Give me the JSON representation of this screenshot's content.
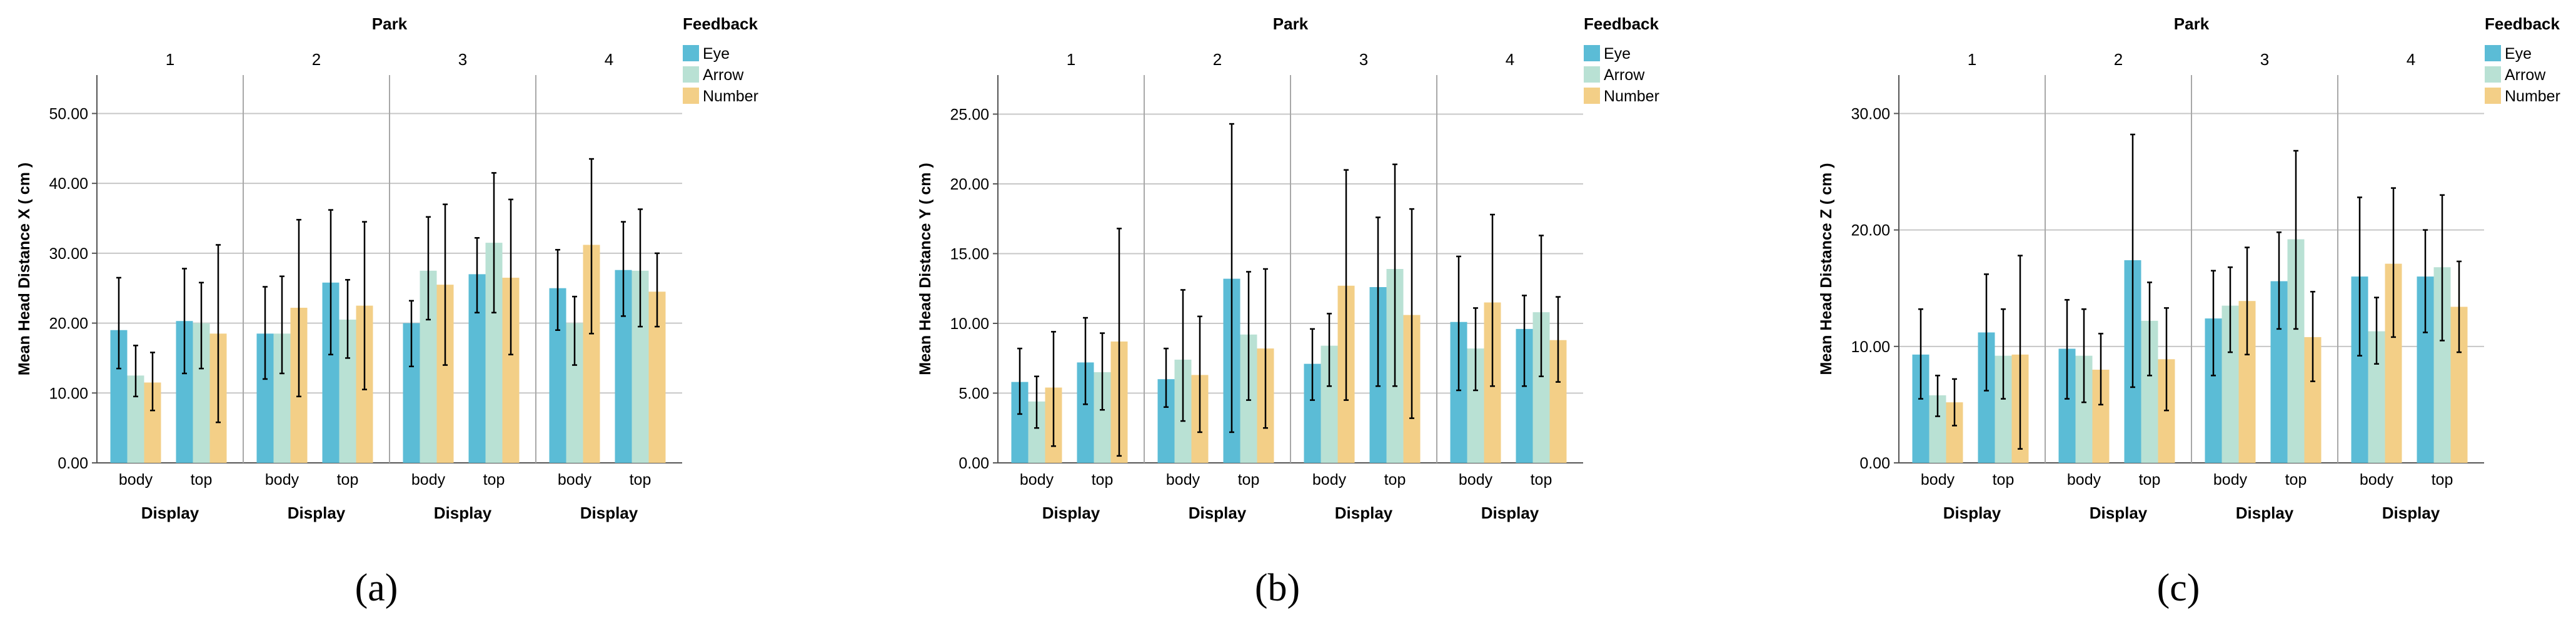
{
  "colors": {
    "eye": "#5bbcd6",
    "arrow": "#b9e1d4",
    "number": "#f3cf87",
    "grid": "#c7c7c7",
    "divider": "#a8a8a8",
    "axis": "#555555",
    "error_bar": "#000000"
  },
  "chart_data": [
    {
      "type": "bar",
      "panel_label": "(a)",
      "facet_title": "Park",
      "facets": [
        "1",
        "2",
        "3",
        "4"
      ],
      "categories": [
        "body",
        "top"
      ],
      "xlabel": "Display",
      "ylabel": "Mean Head Distance X ( cm )",
      "ylim": [
        0,
        55.5
      ],
      "yticks": [
        0,
        10,
        20,
        30,
        40,
        50
      ],
      "ytick_labels": [
        "0.00",
        "10.00",
        "20.00",
        "30.00",
        "40.00",
        "50.00"
      ],
      "grid": true,
      "legend": {
        "title": "Feedback",
        "position": "right",
        "entries": [
          "Eye",
          "Arrow",
          "Number"
        ]
      },
      "series": [
        {
          "name": "Eye",
          "values": [
            [
              19,
              20.3
            ],
            [
              18.5,
              25.8
            ],
            [
              20,
              27
            ],
            [
              25,
              27.6
            ]
          ],
          "ci_low": [
            [
              13.5,
              12.8
            ],
            [
              12,
              15.5
            ],
            [
              13.8,
              21.5
            ],
            [
              19,
              21
            ]
          ],
          "ci_high": [
            [
              26.5,
              27.8
            ],
            [
              25.2,
              36.2
            ],
            [
              23.2,
              32.2
            ],
            [
              30.5,
              34.5
            ]
          ]
        },
        {
          "name": "Arrow",
          "values": [
            [
              12.5,
              20
            ],
            [
              18.5,
              20.5
            ],
            [
              27.5,
              31.5
            ],
            [
              20,
              27.5
            ]
          ],
          "ci_low": [
            [
              9.5,
              13.5
            ],
            [
              12.8,
              15
            ],
            [
              20.5,
              21.5
            ],
            [
              14,
              19.5
            ]
          ],
          "ci_high": [
            [
              16.8,
              25.8
            ],
            [
              26.7,
              26.2
            ],
            [
              35.2,
              41.5
            ],
            [
              23.8,
              36.3
            ]
          ]
        },
        {
          "name": "Number",
          "values": [
            [
              11.5,
              18.5
            ],
            [
              22.2,
              22.5
            ],
            [
              25.5,
              26.5
            ],
            [
              31.2,
              24.5
            ]
          ],
          "ci_low": [
            [
              7.5,
              5.8
            ],
            [
              9.5,
              10.5
            ],
            [
              14,
              15.5
            ],
            [
              18.5,
              19.5
            ]
          ],
          "ci_high": [
            [
              15.8,
              31.2
            ],
            [
              34.8,
              34.5
            ],
            [
              37,
              37.7
            ],
            [
              43.5,
              30
            ]
          ]
        }
      ]
    },
    {
      "type": "bar",
      "panel_label": "(b)",
      "facet_title": "Park",
      "facets": [
        "1",
        "2",
        "3",
        "4"
      ],
      "categories": [
        "body",
        "top"
      ],
      "xlabel": "Display",
      "ylabel": "Mean Head Distance Y ( cm )",
      "ylim": [
        0,
        27.8
      ],
      "yticks": [
        0,
        5,
        10,
        15,
        20,
        25
      ],
      "ytick_labels": [
        "0.00",
        "5.00",
        "10.00",
        "15.00",
        "20.00",
        "25.00"
      ],
      "grid": true,
      "legend": {
        "title": "Feedback",
        "position": "right",
        "entries": [
          "Eye",
          "Arrow",
          "Number"
        ]
      },
      "series": [
        {
          "name": "Eye",
          "values": [
            [
              5.8,
              7.2
            ],
            [
              6,
              13.2
            ],
            [
              7.1,
              12.6
            ],
            [
              10.1,
              9.6
            ]
          ],
          "ci_low": [
            [
              3.5,
              4.2
            ],
            [
              4,
              2.2
            ],
            [
              4.5,
              5.5
            ],
            [
              5.2,
              5.5
            ]
          ],
          "ci_high": [
            [
              8.2,
              10.4
            ],
            [
              8.2,
              24.3
            ],
            [
              9.6,
              17.6
            ],
            [
              14.8,
              12
            ]
          ]
        },
        {
          "name": "Arrow",
          "values": [
            [
              4.4,
              6.5
            ],
            [
              7.4,
              9.2
            ],
            [
              8.4,
              13.9
            ],
            [
              8.2,
              10.8
            ]
          ],
          "ci_low": [
            [
              2.5,
              3.8
            ],
            [
              3,
              4.5
            ],
            [
              5.5,
              5.5
            ],
            [
              5.2,
              6.2
            ]
          ],
          "ci_high": [
            [
              6.2,
              9.3
            ],
            [
              12.4,
              13.7
            ],
            [
              10.7,
              21.4
            ],
            [
              11.1,
              16.3
            ]
          ]
        },
        {
          "name": "Number",
          "values": [
            [
              5.4,
              8.7
            ],
            [
              6.3,
              8.2
            ],
            [
              12.7,
              10.6
            ],
            [
              11.5,
              8.8
            ]
          ],
          "ci_low": [
            [
              1.2,
              0.5
            ],
            [
              2.2,
              2.5
            ],
            [
              4.5,
              3.2
            ],
            [
              5.5,
              5.8
            ]
          ],
          "ci_high": [
            [
              9.4,
              16.8
            ],
            [
              10.5,
              13.9
            ],
            [
              21,
              18.2
            ],
            [
              17.8,
              11.9
            ]
          ]
        }
      ]
    },
    {
      "type": "bar",
      "panel_label": "(c)",
      "facet_title": "Park",
      "facets": [
        "1",
        "2",
        "3",
        "4"
      ],
      "categories": [
        "body",
        "top"
      ],
      "xlabel": "Display",
      "ylabel": "Mean Head Distance Z ( cm )",
      "ylim": [
        0,
        33.3
      ],
      "yticks": [
        0,
        10,
        20,
        30
      ],
      "ytick_labels": [
        "0.00",
        "10.00",
        "20.00",
        "30.00"
      ],
      "grid": true,
      "legend": {
        "title": "Feedback",
        "position": "right",
        "entries": [
          "Eye",
          "Arrow",
          "Number"
        ]
      },
      "series": [
        {
          "name": "Eye",
          "values": [
            [
              9.3,
              11.2
            ],
            [
              9.8,
              17.4
            ],
            [
              12.4,
              15.6
            ],
            [
              16,
              16
            ]
          ],
          "ci_low": [
            [
              5.5,
              6.2
            ],
            [
              5.5,
              6.5
            ],
            [
              7.5,
              11.5
            ],
            [
              9.2,
              11.2
            ]
          ],
          "ci_high": [
            [
              13.2,
              16.2
            ],
            [
              14,
              28.2
            ],
            [
              16.5,
              19.8
            ],
            [
              22.8,
              20
            ]
          ]
        },
        {
          "name": "Arrow",
          "values": [
            [
              5.8,
              9.2
            ],
            [
              9.2,
              12.2
            ],
            [
              13.5,
              19.2
            ],
            [
              11.3,
              16.8
            ]
          ],
          "ci_low": [
            [
              4,
              5.5
            ],
            [
              5.2,
              7.5
            ],
            [
              9.5,
              11.5
            ],
            [
              8.5,
              10.5
            ]
          ],
          "ci_high": [
            [
              7.5,
              13.2
            ],
            [
              13.2,
              15.5
            ],
            [
              16.8,
              26.8
            ],
            [
              14.2,
              23
            ]
          ]
        },
        {
          "name": "Number",
          "values": [
            [
              5.2,
              9.3
            ],
            [
              8,
              8.9
            ],
            [
              13.9,
              10.8
            ],
            [
              17.1,
              13.4
            ]
          ],
          "ci_low": [
            [
              3.2,
              1.2
            ],
            [
              5,
              4.5
            ],
            [
              9.3,
              7
            ],
            [
              10.8,
              9.5
            ]
          ],
          "ci_high": [
            [
              7.2,
              17.8
            ],
            [
              11.1,
              13.3
            ],
            [
              18.5,
              14.7
            ],
            [
              23.6,
              17.3
            ]
          ]
        }
      ]
    }
  ]
}
